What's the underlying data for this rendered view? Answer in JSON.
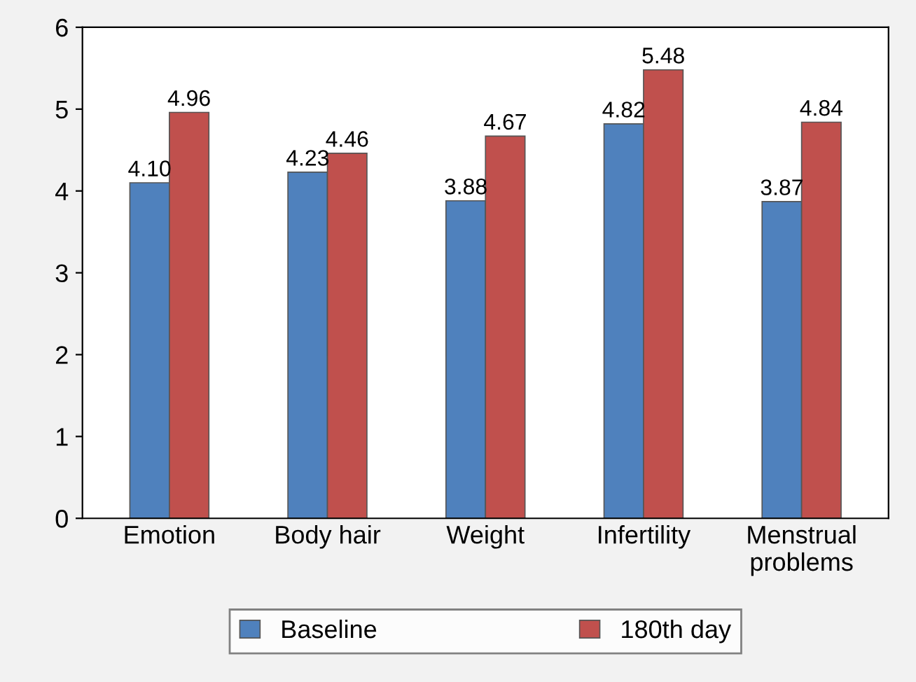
{
  "chart_data": {
    "type": "bar",
    "categories": [
      "Emotion",
      "Body hair",
      "Weight",
      "Infertility",
      "Menstrual\nproblems"
    ],
    "series": [
      {
        "name": "Baseline",
        "color": "#4f81bd",
        "values": [
          4.1,
          4.23,
          3.88,
          4.82,
          3.87
        ],
        "value_labels": [
          "4.10",
          "4.23",
          "3.88",
          "4.82",
          "3.87"
        ]
      },
      {
        "name": "180th day",
        "color": "#c0504d",
        "values": [
          4.96,
          4.46,
          4.67,
          5.48,
          4.84
        ],
        "value_labels": [
          "4.96",
          "4.46",
          "4.67",
          "5.48",
          "4.84"
        ]
      }
    ],
    "ylim": [
      0,
      6
    ],
    "yticks": [
      0,
      1,
      2,
      3,
      4,
      5,
      6
    ],
    "grid": false,
    "legend": "bottom"
  }
}
